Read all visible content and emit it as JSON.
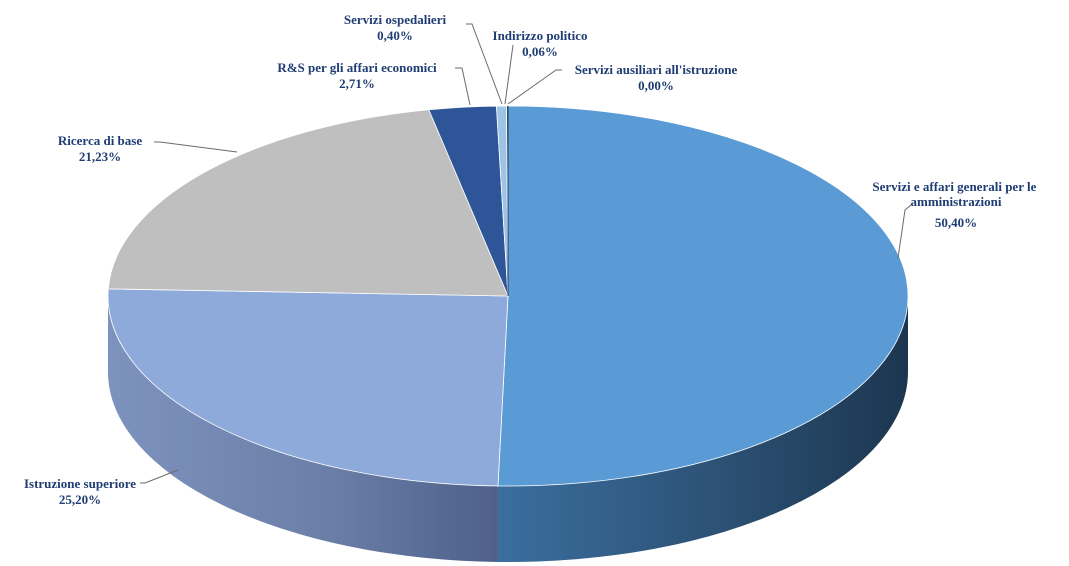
{
  "chart_data": {
    "type": "pie",
    "title": "",
    "style": "3d",
    "slices": [
      {
        "name": "Servizi e affari generali per le amministrazioni",
        "value": 50.4,
        "label": "50,40%",
        "color": "#5b9bd5"
      },
      {
        "name": "Istruzione superiore",
        "value": 25.2,
        "label": "25,20%",
        "color": "#8eaadb"
      },
      {
        "name": "Ricerca di base",
        "value": 21.23,
        "label": "21,23%",
        "color": "#bfbfbf"
      },
      {
        "name": "R&S per gli affari economici",
        "value": 2.71,
        "label": "2,71%",
        "color": "#2e5597"
      },
      {
        "name": "Servizi ospedalieri",
        "value": 0.4,
        "label": "0,40%",
        "color": "#9dc3e6"
      },
      {
        "name": "Indirizzo politico",
        "value": 0.06,
        "label": "0,06%",
        "color": "#2f6b3a"
      },
      {
        "name": "Servizi ausiliari all'istruzione",
        "value": 0.0,
        "label": "0,00%",
        "color": "#203864"
      }
    ]
  }
}
